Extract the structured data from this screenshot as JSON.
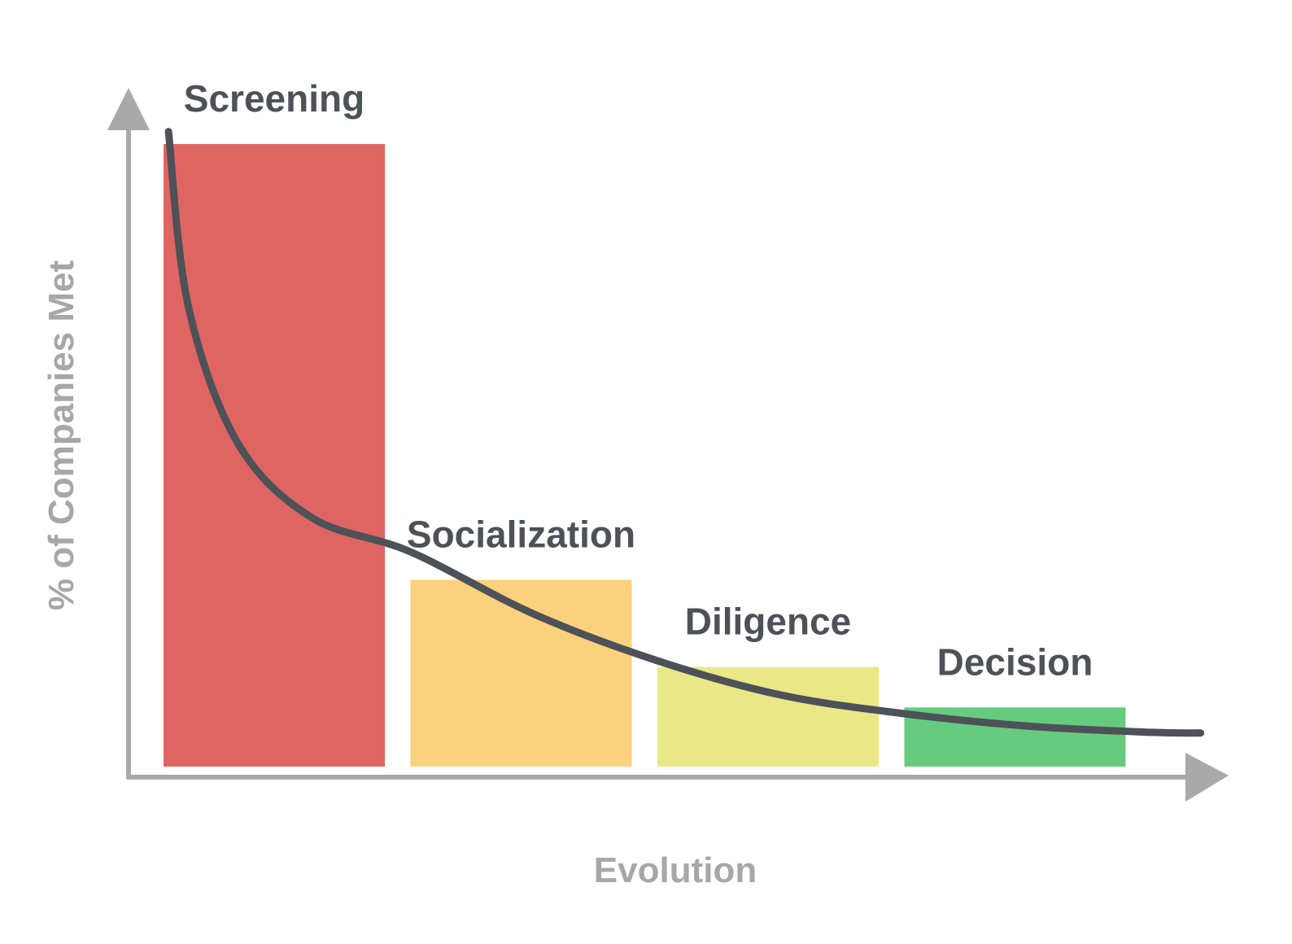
{
  "chart_data": {
    "type": "bar",
    "title": "",
    "xlabel": "Evolution",
    "ylabel": "% of Companies Met",
    "categories": [
      "Screening",
      "Socialization",
      "Diligence",
      "Decision"
    ],
    "values": [
      100,
      30,
      16,
      9.5
    ],
    "ylim": [
      0,
      100
    ],
    "grid": false,
    "legend": "none",
    "curve": [
      {
        "x": 0.02,
        "y": 102
      },
      {
        "x": 0.1,
        "y": 74
      },
      {
        "x": 0.3,
        "y": 52
      },
      {
        "x": 0.6,
        "y": 40
      },
      {
        "x": 1.0,
        "y": 34.5
      },
      {
        "x": 1.5,
        "y": 24.5
      },
      {
        "x": 2.0,
        "y": 17
      },
      {
        "x": 2.5,
        "y": 11.5
      },
      {
        "x": 3.0,
        "y": 8.5
      },
      {
        "x": 3.5,
        "y": 6.5
      },
      {
        "x": 4.0,
        "y": 5.5
      },
      {
        "x": 4.2,
        "y": 5.4
      }
    ]
  },
  "colors": {
    "bars": [
      "#de6561",
      "#fbd17e",
      "#eae786",
      "#66cb7f"
    ],
    "curve": "#4d5158",
    "axis": "#a9a9a9",
    "category_label": "#4d5158",
    "axis_title": "#a7a7a7"
  }
}
